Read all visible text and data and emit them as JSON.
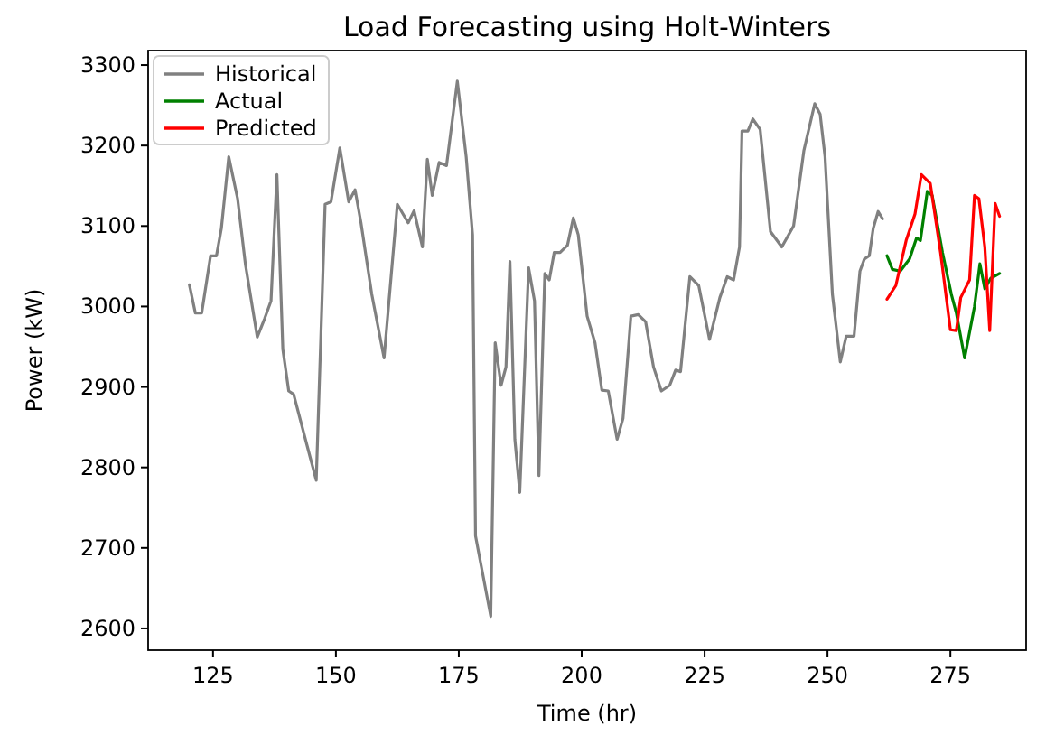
{
  "chart_data": {
    "type": "line",
    "title": "Load Forecasting using Holt-Winters",
    "xlabel": "Time (hr)",
    "ylabel": "Power (kW)",
    "xlim": [
      111.8,
      290.4
    ],
    "xticks": [
      125,
      150,
      175,
      200,
      225,
      250,
      275
    ],
    "ylim": [
      2573,
      3318
    ],
    "yticks": [
      2600,
      2700,
      2800,
      2900,
      3000,
      3100,
      3200,
      3300
    ],
    "grid": false,
    "legend": "top left",
    "marker": "none",
    "line_style": "solid",
    "series": [
      {
        "name": "Historical",
        "color": "#808080",
        "x": [
          120.2,
          121.4,
          122.7,
          124.5,
          125.7,
          126.7,
          128.2,
          130,
          131.6,
          134,
          135.5,
          136.8,
          138,
          139.2,
          140.4,
          141.4,
          144.1,
          146,
          147.8,
          149,
          150.8,
          152.6,
          153.9,
          155.1,
          157.3,
          159.8,
          162.5,
          164.7,
          165.9,
          167.6,
          168.6,
          169.6,
          171,
          172.5,
          174.7,
          176.5,
          177.8,
          178.4,
          181.5,
          182.4,
          183.6,
          184.6,
          185.4,
          186.4,
          187.4,
          189.2,
          190.4,
          191.3,
          192.5,
          193.4,
          194.4,
          195.6,
          197.1,
          198.3,
          199.3,
          201.1,
          202.7,
          204.1,
          205.4,
          207.2,
          208.4,
          210,
          211.5,
          213,
          214.6,
          216.2,
          217.9,
          219.1,
          220.1,
          222,
          223.8,
          226,
          228.1,
          229.6,
          230.9,
          232.1,
          232.6,
          233.8,
          234.8,
          236.3,
          238.4,
          240.7,
          243.1,
          245.2,
          247.4,
          248.5,
          249.5,
          251,
          252.6,
          253.8,
          255.4,
          256.6,
          257.5,
          258.5,
          259.3,
          260.3,
          261.2
        ],
        "values": [
          3027,
          2992,
          2992,
          3063,
          3063,
          3097,
          3186,
          3134,
          3052,
          2962,
          2985,
          3007,
          3164,
          2947,
          2895,
          2891,
          2828,
          2784,
          3127,
          3130,
          3197,
          3130,
          3145,
          3104,
          3015,
          2936,
          3127,
          3104,
          3119,
          3074,
          3183,
          3138,
          3179,
          3175,
          3280,
          3186,
          3089,
          2715,
          2615,
          2955,
          2902,
          2925,
          3056,
          2835,
          2769,
          3048,
          3007,
          2790,
          3041,
          3033,
          3067,
          3067,
          3076,
          3110,
          3089,
          2988,
          2955,
          2896,
          2895,
          2835,
          2861,
          2988,
          2990,
          2981,
          2925,
          2895,
          2902,
          2921,
          2919,
          3037,
          3026,
          2959,
          3011,
          3037,
          3033,
          3074,
          3218,
          3218,
          3233,
          3220,
          3093,
          3074,
          3100,
          3194,
          3252,
          3239,
          3186,
          3015,
          2931,
          2963,
          2963,
          3044,
          3059,
          3063,
          3097,
          3118,
          3109
        ]
      },
      {
        "name": "Actual",
        "color": "#008000",
        "x": [
          262.1,
          263.2,
          264.8,
          266.7,
          268.1,
          268.9,
          270.3,
          271.3,
          273.4,
          275.2,
          276.2,
          277.9,
          279.9,
          281,
          282,
          283.2,
          285
        ],
        "values": [
          3063,
          3046,
          3044,
          3059,
          3085,
          3082,
          3143,
          3138,
          3067,
          3015,
          2992,
          2936,
          3000,
          3053,
          3022,
          3035,
          3041
        ]
      },
      {
        "name": "Predicted",
        "color": "#ff0000",
        "x": [
          262.1,
          263.9,
          266,
          267.8,
          269.1,
          270.9,
          273,
          275,
          276.2,
          277.1,
          278.9,
          279.9,
          280.8,
          282,
          283,
          284.1,
          285
        ],
        "values": [
          3009,
          3026,
          3082,
          3115,
          3164,
          3153,
          3067,
          2971,
          2970,
          3011,
          3033,
          3138,
          3134,
          3074,
          2970,
          3128,
          3112
        ]
      }
    ]
  }
}
